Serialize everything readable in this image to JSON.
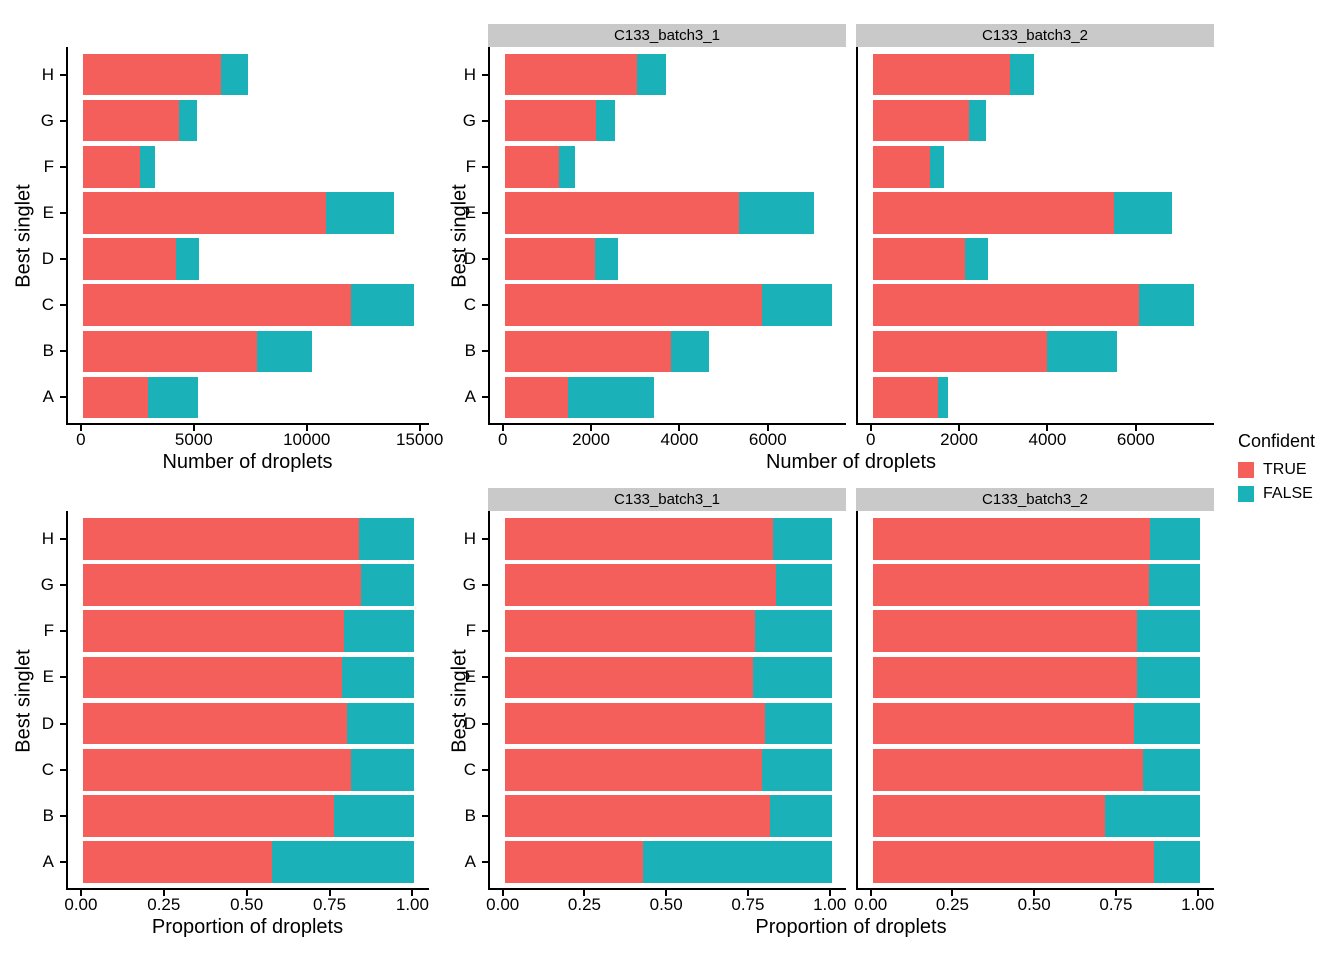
{
  "figure": {
    "background": "#FFFFFF",
    "axis_color": "#000000",
    "strip_bg": "#C9C9C9",
    "true_color": "#F45F5B",
    "false_color": "#1AB2B8"
  },
  "legend": {
    "title": "Confident",
    "position": "right",
    "items": [
      {
        "label": "TRUE",
        "color": "#F45F5B"
      },
      {
        "label": "FALSE",
        "color": "#1AB2B8"
      }
    ]
  },
  "chart_data": [
    {
      "id": "counts-combined",
      "type": "bar",
      "orientation": "horizontal",
      "stacked": true,
      "title": "",
      "xlabel": "Number of droplets",
      "ylabel": "Best singlet",
      "categories": [
        "A",
        "B",
        "C",
        "D",
        "E",
        "F",
        "G",
        "H"
      ],
      "series": [
        {
          "name": "TRUE",
          "values": [
            2900,
            7700,
            11860,
            4120,
            10770,
            2520,
            4240,
            6100
          ]
        },
        {
          "name": "FALSE",
          "values": [
            2190,
            2460,
            2820,
            1040,
            2990,
            680,
            820,
            1210
          ]
        }
      ],
      "xlim": [
        0,
        14680
      ],
      "xticks": [
        0,
        5000,
        10000,
        15000
      ],
      "xtick_labels": [
        "0",
        "5000",
        "10000",
        "15000"
      ],
      "grid": false,
      "legend_position": "none"
    },
    {
      "id": "counts-by-sample",
      "type": "bar",
      "orientation": "horizontal",
      "stacked": true,
      "title": "",
      "xlabel": "Number of droplets",
      "ylabel": "Best singlet",
      "categories": [
        "A",
        "B",
        "C",
        "D",
        "E",
        "F",
        "G",
        "H"
      ],
      "facets": [
        {
          "title": "C133_batch3_1",
          "series": [
            {
              "name": "TRUE",
              "values": [
                1430,
                3760,
                5830,
                2040,
                5310,
                1220,
                2070,
                3000
              ]
            },
            {
              "name": "FALSE",
              "values": [
                1950,
                870,
                1570,
                520,
                1680,
                370,
                420,
                650
              ]
            }
          ]
        },
        {
          "title": "C133_batch3_2",
          "series": [
            {
              "name": "TRUE",
              "values": [
                1470,
                3940,
                6030,
                2080,
                5460,
                1300,
                2170,
                3100
              ]
            },
            {
              "name": "FALSE",
              "values": [
                240,
                1590,
                1250,
                520,
                1310,
                310,
                400,
                560
              ]
            }
          ]
        }
      ],
      "xlim": [
        0,
        7400
      ],
      "xticks": [
        0,
        2000,
        4000,
        6000
      ],
      "xtick_labels": [
        "0",
        "2000",
        "4000",
        "6000"
      ],
      "grid": false,
      "legend_position": "none"
    },
    {
      "id": "proportions-combined",
      "type": "bar",
      "orientation": "horizontal",
      "stacked": true,
      "title": "",
      "xlabel": "Proportion of droplets",
      "ylabel": "Best singlet",
      "categories": [
        "A",
        "B",
        "C",
        "D",
        "E",
        "F",
        "G",
        "H"
      ],
      "series": [
        {
          "name": "TRUE",
          "values": [
            0.57,
            0.758,
            0.808,
            0.798,
            0.783,
            0.788,
            0.838,
            0.834
          ]
        },
        {
          "name": "FALSE",
          "values": [
            0.43,
            0.242,
            0.192,
            0.202,
            0.217,
            0.212,
            0.162,
            0.166
          ]
        }
      ],
      "xlim": [
        0,
        1
      ],
      "xticks": [
        0,
        0.25,
        0.5,
        0.75,
        1
      ],
      "xtick_labels": [
        "0.00",
        "0.25",
        "0.50",
        "0.75",
        "1.00"
      ],
      "grid": false,
      "legend_position": "none"
    },
    {
      "id": "proportions-by-sample",
      "type": "bar",
      "orientation": "horizontal",
      "stacked": true,
      "title": "",
      "xlabel": "Proportion of droplets",
      "ylabel": "Best singlet",
      "categories": [
        "A",
        "B",
        "C",
        "D",
        "E",
        "F",
        "G",
        "H"
      ],
      "facets": [
        {
          "title": "C133_batch3_1",
          "series": [
            {
              "name": "TRUE",
              "values": [
                0.423,
                0.812,
                0.788,
                0.797,
                0.76,
                0.767,
                0.831,
                0.822
              ]
            },
            {
              "name": "FALSE",
              "values": [
                0.577,
                0.188,
                0.212,
                0.203,
                0.24,
                0.233,
                0.169,
                0.178
              ]
            }
          ]
        },
        {
          "title": "C133_batch3_2",
          "series": [
            {
              "name": "TRUE",
              "values": [
                0.86,
                0.712,
                0.828,
                0.8,
                0.807,
                0.807,
                0.844,
                0.847
              ]
            },
            {
              "name": "FALSE",
              "values": [
                0.14,
                0.288,
                0.172,
                0.2,
                0.193,
                0.193,
                0.156,
                0.153
              ]
            }
          ]
        }
      ],
      "xlim": [
        0,
        1
      ],
      "xticks": [
        0,
        0.25,
        0.5,
        0.75,
        1
      ],
      "xtick_labels": [
        "0.00",
        "0.25",
        "0.50",
        "0.75",
        "1.00"
      ],
      "grid": false,
      "legend_position": "none"
    }
  ]
}
